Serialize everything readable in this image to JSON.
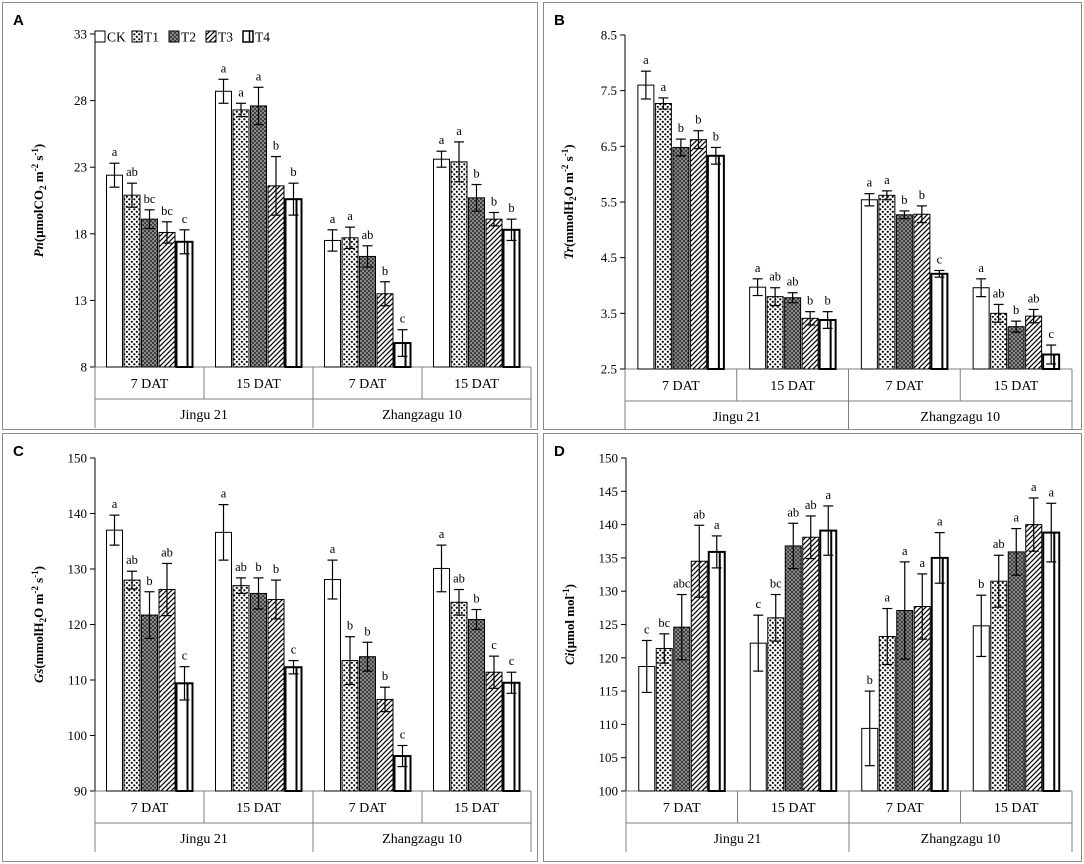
{
  "legend": [
    "CK",
    "T1",
    "T2",
    "T3",
    "T4"
  ],
  "chart_data": [
    {
      "panel": "A",
      "type": "bar",
      "ylabel_var": "Pn",
      "ylabel_unit": "(μmolCO",
      "ylabel_sub": "2",
      "ylabel_rest": " m",
      "ylabel_sup1": "-2",
      "ylabel_rest2": " s",
      "ylabel_sup2": "-1",
      "ylabel_end": ")",
      "ylim": [
        8,
        33
      ],
      "yticks": [
        8,
        13,
        18,
        23,
        28,
        33
      ],
      "subgroups": [
        "7 DAT",
        "15 DAT",
        "7 DAT",
        "15 DAT"
      ],
      "groups": [
        "Jingu 21",
        "Zhangzagu 10"
      ],
      "series_names": [
        "CK",
        "T1",
        "T2",
        "T3",
        "T4"
      ],
      "values": [
        [
          22.4,
          20.9,
          19.1,
          18.1,
          17.4
        ],
        [
          28.7,
          27.3,
          27.6,
          21.6,
          20.6
        ],
        [
          17.5,
          17.7,
          16.3,
          13.5,
          9.8
        ],
        [
          23.6,
          23.4,
          20.7,
          19.1,
          18.3
        ]
      ],
      "errors": [
        [
          0.9,
          0.9,
          0.7,
          0.8,
          0.9
        ],
        [
          0.9,
          0.5,
          1.4,
          2.2,
          1.2
        ],
        [
          0.8,
          0.8,
          0.8,
          0.9,
          1.0
        ],
        [
          0.6,
          1.5,
          1.0,
          0.5,
          0.8
        ]
      ],
      "letters": [
        [
          "a",
          "ab",
          "bc",
          "bc",
          "c"
        ],
        [
          "a",
          "a",
          "a",
          "b",
          "b"
        ],
        [
          "a",
          "a",
          "ab",
          "b",
          "c"
        ],
        [
          "a",
          "a",
          "b",
          "b",
          "b"
        ]
      ]
    },
    {
      "panel": "B",
      "type": "bar",
      "ylabel_var": "Tr",
      "ylabel_unit": "(mmolH",
      "ylabel_sub": "2",
      "ylabel_rest": "O m",
      "ylabel_sup1": "-2",
      "ylabel_rest2": " s",
      "ylabel_sup2": "-1",
      "ylabel_end": ")",
      "ylim": [
        2.5,
        8.5
      ],
      "yticks": [
        2.5,
        3.5,
        4.5,
        5.5,
        6.5,
        7.5,
        8.5
      ],
      "subgroups": [
        "7 DAT",
        "15 DAT",
        "7 DAT",
        "15 DAT"
      ],
      "groups": [
        "Jingu 21",
        "Zhangzagu 10"
      ],
      "series_names": [
        "CK",
        "T1",
        "T2",
        "T3",
        "T4"
      ],
      "values": [
        [
          7.6,
          7.27,
          6.48,
          6.62,
          6.33
        ],
        [
          3.97,
          3.8,
          3.78,
          3.41,
          3.38
        ],
        [
          5.54,
          5.62,
          5.27,
          5.28,
          4.21
        ],
        [
          3.96,
          3.5,
          3.26,
          3.45,
          2.76
        ]
      ],
      "errors": [
        [
          0.25,
          0.1,
          0.15,
          0.16,
          0.15
        ],
        [
          0.15,
          0.16,
          0.09,
          0.12,
          0.15
        ],
        [
          0.11,
          0.08,
          0.07,
          0.15,
          0.06
        ],
        [
          0.16,
          0.16,
          0.1,
          0.12,
          0.17
        ]
      ],
      "letters": [
        [
          "a",
          "a",
          "b",
          "b",
          "b"
        ],
        [
          "a",
          "ab",
          "ab",
          "b",
          "b"
        ],
        [
          "a",
          "a",
          "b",
          "b",
          "c"
        ],
        [
          "a",
          "ab",
          "b",
          "ab",
          "c"
        ]
      ]
    },
    {
      "panel": "C",
      "type": "bar",
      "ylabel_var": "Gs",
      "ylabel_unit": "(mmolH",
      "ylabel_sub": "2",
      "ylabel_rest": "O m",
      "ylabel_sup1": "-2",
      "ylabel_rest2": " s",
      "ylabel_sup2": "-1",
      "ylabel_end": ")",
      "ylim": [
        90,
        150
      ],
      "yticks": [
        90,
        100,
        110,
        120,
        130,
        140,
        150
      ],
      "subgroups": [
        "7 DAT",
        "15 DAT",
        "7 DAT",
        "15 DAT"
      ],
      "groups": [
        "Jingu 21",
        "Zhangzagu 10"
      ],
      "series_names": [
        "CK",
        "T1",
        "T2",
        "T3",
        "T4"
      ],
      "values": [
        [
          137.0,
          128.0,
          121.7,
          126.3,
          109.4
        ],
        [
          136.6,
          127.0,
          125.6,
          124.5,
          112.3
        ],
        [
          128.1,
          113.5,
          114.2,
          106.5,
          96.3
        ],
        [
          130.1,
          124.0,
          120.9,
          111.4,
          109.5
        ]
      ],
      "errors": [
        [
          2.7,
          1.6,
          4.2,
          4.7,
          3.0
        ],
        [
          5.0,
          1.4,
          2.8,
          3.5,
          1.2
        ],
        [
          3.5,
          4.3,
          2.6,
          2.2,
          1.9
        ],
        [
          4.2,
          2.3,
          1.8,
          2.9,
          1.9
        ]
      ],
      "letters": [
        [
          "a",
          "ab",
          "b",
          "ab",
          "c"
        ],
        [
          "a",
          "ab",
          "b",
          "b",
          "c"
        ],
        [
          "a",
          "b",
          "b",
          "b",
          "c"
        ],
        [
          "a",
          "ab",
          "b",
          "c",
          "c"
        ]
      ]
    },
    {
      "panel": "D",
      "type": "bar",
      "ylabel_var": "Ci",
      "ylabel_unit": "(μmol mol",
      "ylabel_sub": "",
      "ylabel_rest": "",
      "ylabel_sup1": "-1",
      "ylabel_rest2": "",
      "ylabel_sup2": "",
      "ylabel_end": ")",
      "ylim": [
        100,
        150
      ],
      "yticks": [
        100,
        105,
        110,
        115,
        120,
        125,
        130,
        135,
        140,
        145,
        150
      ],
      "subgroups": [
        "7 DAT",
        "15 DAT",
        "7 DAT",
        "15 DAT"
      ],
      "groups": [
        "Jingu 21",
        "Zhangzagu 10"
      ],
      "series_names": [
        "CK",
        "T1",
        "T2",
        "T3",
        "T4"
      ],
      "values": [
        [
          118.7,
          121.4,
          124.6,
          134.5,
          135.9
        ],
        [
          122.2,
          126.0,
          136.8,
          138.1,
          139.1
        ],
        [
          109.4,
          123.2,
          127.1,
          127.7,
          135.0
        ],
        [
          124.8,
          131.5,
          135.9,
          140.0,
          138.8
        ]
      ],
      "errors": [
        [
          3.9,
          2.2,
          4.9,
          5.4,
          2.4
        ],
        [
          4.2,
          3.5,
          3.4,
          3.2,
          3.7
        ],
        [
          5.6,
          4.2,
          7.3,
          4.9,
          3.8
        ],
        [
          4.6,
          3.9,
          3.5,
          4.0,
          4.4
        ]
      ],
      "letters": [
        [
          "c",
          "bc",
          "abc",
          "ab",
          "a"
        ],
        [
          "c",
          "bc",
          "ab",
          "ab",
          "a"
        ],
        [
          "b",
          "a",
          "a",
          "a",
          "a"
        ],
        [
          "b",
          "ab",
          "a",
          "a",
          "a"
        ]
      ]
    }
  ]
}
